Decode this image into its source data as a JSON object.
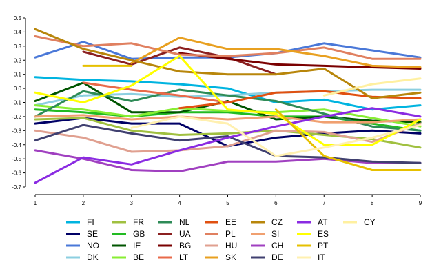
{
  "chart_data": {
    "type": "line",
    "title": "",
    "xlabel": "",
    "ylabel": "",
    "x": [
      1,
      2,
      3,
      4,
      5,
      6,
      7,
      8,
      9
    ],
    "ylim": [
      -0.7,
      0.5
    ],
    "yticks": [
      0.5,
      0.4,
      0.3,
      0.2,
      0.1,
      0.0,
      -0.1,
      -0.2,
      -0.3,
      -0.4,
      -0.5,
      -0.6,
      -0.7
    ],
    "ytick_labels": [
      "0.5",
      "0.4",
      "0.3",
      "0.2",
      "0.1",
      "0.0",
      "-0.1",
      "-0.2",
      "-0.3",
      "-0.4",
      "-0.5",
      "-0.6",
      "-0.7"
    ],
    "xticks": [
      1,
      2,
      3,
      4,
      5,
      6,
      7,
      8,
      9
    ],
    "xtick_labels": [
      "1",
      "2",
      "3",
      "4",
      "5",
      "6",
      "7",
      "8",
      "9"
    ],
    "grid": false,
    "legend_placement": "bottom",
    "series": [
      {
        "name": "FI",
        "color": "#00b4e0",
        "values": [
          0.08,
          0.06,
          0.05,
          0.03,
          0.0,
          -0.1,
          -0.08,
          -0.15,
          -0.12
        ]
      },
      {
        "name": "SE",
        "color": "#000066",
        "values": [
          -0.25,
          -0.21,
          -0.25,
          -0.25,
          -0.41,
          -0.35,
          -0.32,
          -0.3,
          -0.32
        ]
      },
      {
        "name": "NO",
        "color": "#4a78d8",
        "values": [
          0.22,
          0.33,
          0.21,
          0.22,
          0.22,
          0.25,
          0.32,
          0.27,
          0.22
        ]
      },
      {
        "name": "DK",
        "color": "#8ccfe0",
        "values": [
          -0.12,
          -0.05,
          -0.04,
          -0.06,
          -0.05,
          -0.03,
          -0.02,
          -0.01,
          -0.01
        ]
      },
      {
        "name": "FR",
        "color": "#a0c040",
        "values": [
          -0.22,
          -0.21,
          -0.3,
          -0.33,
          -0.32,
          -0.3,
          -0.33,
          -0.36,
          -0.42
        ]
      },
      {
        "name": "GB",
        "color": "#22bb22",
        "values": [
          -0.15,
          -0.17,
          -0.2,
          -0.17,
          -0.17,
          -0.2,
          -0.2,
          -0.25,
          -0.3
        ]
      },
      {
        "name": "IE",
        "color": "#005500",
        "values": [
          -0.09,
          0.04,
          -0.17,
          -0.17,
          -0.09,
          -0.22,
          -0.2,
          -0.23,
          -0.24
        ]
      },
      {
        "name": "BE",
        "color": "#88ee33",
        "values": [
          -0.12,
          -0.15,
          -0.2,
          -0.14,
          -0.16,
          -0.17,
          -0.15,
          -0.21,
          -0.27
        ]
      },
      {
        "name": "NL",
        "color": "#2e8b57",
        "values": [
          -0.2,
          -0.02,
          -0.09,
          -0.01,
          -0.05,
          -0.09,
          -0.18,
          -0.27,
          -0.3
        ]
      },
      {
        "name": "UA",
        "color": "#8b2020",
        "values": [
          null,
          0.26,
          0.17,
          0.29,
          0.22,
          0.1,
          null,
          null,
          null
        ]
      },
      {
        "name": "BG",
        "color": "#7a0000",
        "values": [
          null,
          null,
          null,
          0.25,
          0.21,
          0.17,
          0.16,
          0.15,
          0.14
        ]
      },
      {
        "name": "LT",
        "color": "#e86a4a",
        "values": [
          null,
          0.04,
          -0.01,
          -0.05,
          -0.1,
          null,
          null,
          null,
          null
        ]
      },
      {
        "name": "EE",
        "color": "#e05010",
        "values": [
          null,
          null,
          null,
          -0.14,
          -0.1,
          -0.03,
          -0.02,
          -0.06,
          -0.07
        ]
      },
      {
        "name": "PL",
        "color": "#e08060",
        "values": [
          0.37,
          0.3,
          0.32,
          0.24,
          0.23,
          0.25,
          0.29,
          0.21,
          0.21
        ]
      },
      {
        "name": "HU",
        "color": "#e0a090",
        "values": [
          -0.3,
          -0.35,
          -0.45,
          -0.44,
          -0.41,
          -0.3,
          -0.31,
          -0.38,
          -0.25
        ]
      },
      {
        "name": "SK",
        "color": "#e8a020",
        "values": [
          null,
          null,
          0.18,
          0.36,
          0.28,
          0.28,
          0.23,
          0.16,
          0.15
        ]
      },
      {
        "name": "CZ",
        "color": "#b8860b",
        "values": [
          0.42,
          0.28,
          0.2,
          0.12,
          0.1,
          0.1,
          0.14,
          -0.07,
          -0.03
        ]
      },
      {
        "name": "SI",
        "color": "#f0a070",
        "values": [
          -0.2,
          -0.19,
          -0.22,
          -0.2,
          -0.22,
          -0.2,
          -0.24,
          -0.24,
          -0.22
        ]
      },
      {
        "name": "CH",
        "color": "#a040c0",
        "values": [
          -0.44,
          -0.5,
          -0.58,
          -0.59,
          -0.52,
          -0.52,
          -0.5,
          -0.53,
          -0.53
        ]
      },
      {
        "name": "DE",
        "color": "#404070",
        "values": [
          -0.37,
          -0.26,
          -0.32,
          -0.37,
          -0.34,
          -0.48,
          -0.49,
          -0.52,
          -0.53
        ]
      },
      {
        "name": "AT",
        "color": "#8a2be2",
        "values": [
          -0.67,
          -0.49,
          -0.54,
          -0.44,
          -0.35,
          -0.27,
          -0.2,
          -0.14,
          -0.2
        ]
      },
      {
        "name": "ES",
        "color": "#ffff00",
        "values": [
          -0.03,
          -0.1,
          0.02,
          0.23,
          -0.15,
          -0.18,
          -0.4,
          -0.4,
          -0.22
        ]
      },
      {
        "name": "PT",
        "color": "#e6c000",
        "values": [
          null,
          0.16,
          0.16,
          null,
          null,
          -0.15,
          -0.48,
          -0.58,
          -0.58
        ]
      },
      {
        "name": "IT",
        "color": "#fff0b0",
        "values": [
          null,
          null,
          -0.28,
          -0.2,
          -0.25,
          -0.48,
          -0.42,
          -0.35,
          -0.26
        ]
      },
      {
        "name": "CY",
        "color": "#fff0a0",
        "values": [
          null,
          null,
          null,
          null,
          null,
          null,
          -0.05,
          0.03,
          0.07
        ]
      }
    ]
  },
  "legend_layout": {
    "columns": [
      [
        "FI",
        "SE",
        "NO",
        "DK"
      ],
      [
        "FR",
        "GB",
        "IE",
        "BE"
      ],
      [
        "NL",
        "UA",
        "BG",
        "LT"
      ],
      [
        "EE",
        "PL",
        "HU",
        "SK"
      ],
      [
        "CZ",
        "SI",
        "CH",
        "DE"
      ],
      [
        "AT",
        "ES",
        "PT",
        "IT"
      ],
      [
        "CY"
      ]
    ]
  }
}
